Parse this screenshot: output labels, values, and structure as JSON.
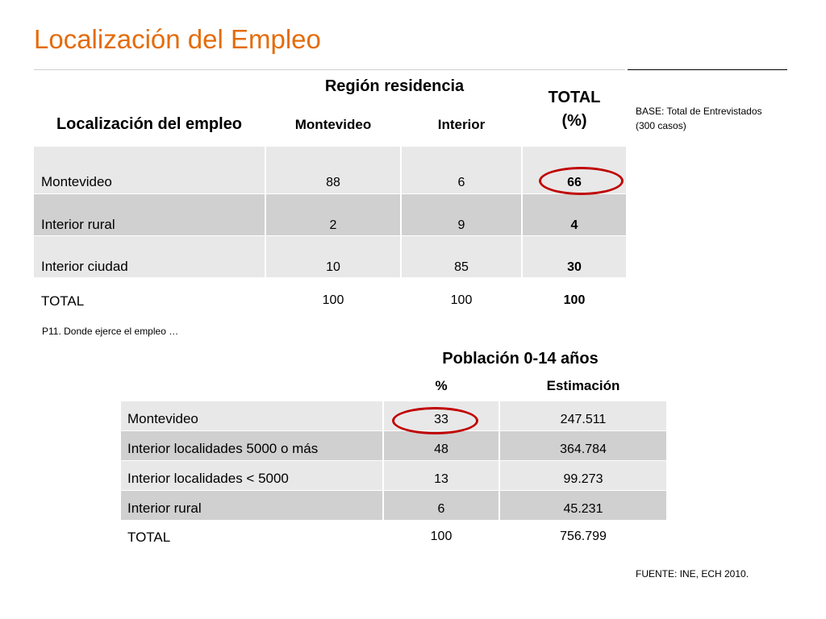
{
  "title": "Localización del Empleo",
  "table1": {
    "group_header": "Región residencia",
    "row_header": "Localización del empleo",
    "col_montevideo": "Montevideo",
    "col_interior": "Interior",
    "col_total": "TOTAL (%)",
    "rows": [
      {
        "label": "Montevideo",
        "montevideo": "88",
        "interior": "6",
        "total": "66"
      },
      {
        "label": "Interior rural",
        "montevideo": "2",
        "interior": "9",
        "total": "4"
      },
      {
        "label": "Interior ciudad",
        "montevideo": "10",
        "interior": "85",
        "total": "30"
      },
      {
        "label": "TOTAL",
        "montevideo": "100",
        "interior": "100",
        "total": "100"
      }
    ],
    "footnote": "P11. Donde ejerce el empleo …"
  },
  "base_note": {
    "line1": "BASE: Total de Entrevistados",
    "line2": "(300 casos)"
  },
  "table2": {
    "group_header": "Población 0-14 años",
    "col_pct": "%",
    "col_est": "Estimación",
    "rows": [
      {
        "label": "Montevideo",
        "pct": "33",
        "est": "247.511"
      },
      {
        "label": "Interior localidades 5000 o más",
        "pct": "48",
        "est": "364.784"
      },
      {
        "label": "Interior localidades < 5000",
        "pct": "13",
        "est": "99.273"
      },
      {
        "label": "Interior rural",
        "pct": "6",
        "est": "45.231"
      },
      {
        "label": "TOTAL",
        "pct": "100",
        "est": "756.799"
      }
    ]
  },
  "source": "FUENTE:  INE, ECH 2010.",
  "colors": {
    "title": "#e46c0a",
    "highlight_ring": "#c00000",
    "row_light": "#e8e8e8",
    "row_dark": "#d0d0d0"
  }
}
